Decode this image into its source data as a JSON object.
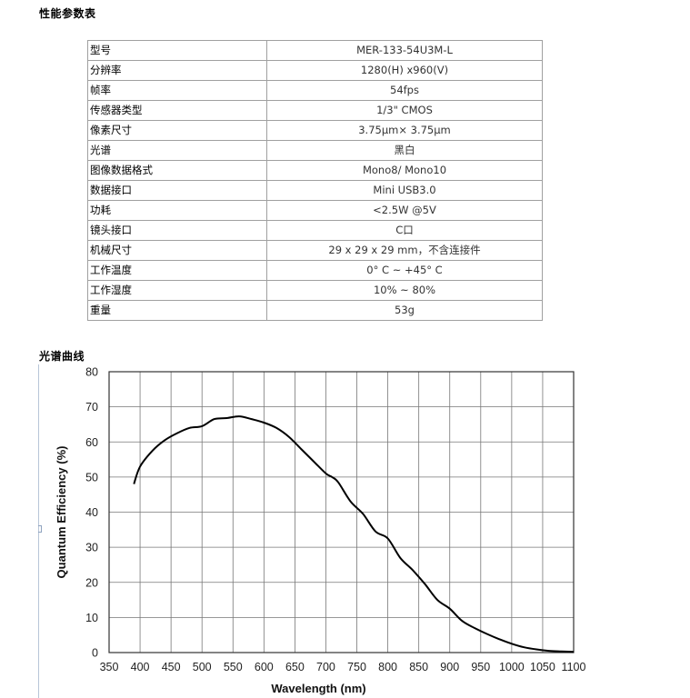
{
  "sections": {
    "specs_title": "性能参数表",
    "curve_title": "光谱曲线"
  },
  "specs": [
    {
      "key": "型号",
      "value": "MER-133-54U3M-L"
    },
    {
      "key": "分辨率",
      "value": "1280(H) x960(V)"
    },
    {
      "key": "帧率",
      "value": "54fps"
    },
    {
      "key": "传感器类型",
      "value": "1/3\" CMOS"
    },
    {
      "key": "像素尺寸",
      "value": "3.75μm× 3.75μm"
    },
    {
      "key": "光谱",
      "value": "黑白"
    },
    {
      "key": "图像数据格式",
      "value": "Mono8/ Mono10"
    },
    {
      "key": "数据接口",
      "value": "Mini USB3.0"
    },
    {
      "key": "功耗",
      "value": "<2.5W @5V"
    },
    {
      "key": "镜头接口",
      "value": "C口"
    },
    {
      "key": "机械尺寸",
      "value": "29 x 29 x 29 mm，不含连接件"
    },
    {
      "key": "工作温度",
      "value": "0° C ~ +45° C"
    },
    {
      "key": "工作湿度",
      "value": "10% ~ 80%"
    },
    {
      "key": "重量",
      "value": "53g"
    }
  ],
  "chart_data": {
    "type": "line",
    "xlabel": "Wavelength (nm)",
    "ylabel": "Quantum Efficiency (%)",
    "xlim": [
      350,
      1100
    ],
    "ylim": [
      0,
      80
    ],
    "x_ticks": [
      350,
      400,
      450,
      500,
      550,
      600,
      650,
      700,
      750,
      800,
      850,
      900,
      950,
      1000,
      1050,
      1100
    ],
    "y_ticks": [
      0,
      10,
      20,
      30,
      40,
      50,
      60,
      70,
      80
    ],
    "grid": true,
    "line_color": "#000000",
    "series": [
      {
        "x": [
          390,
          400,
          420,
          440,
          460,
          480,
          500,
          520,
          540,
          560,
          580,
          600,
          620,
          640,
          660,
          680,
          700,
          710,
          720,
          740,
          760,
          780,
          800,
          820,
          840,
          860,
          880,
          900,
          920,
          940,
          960,
          980,
          1000,
          1020,
          1040,
          1060,
          1080,
          1100
        ],
        "y": [
          48,
          53,
          57.5,
          60.5,
          62.5,
          64,
          64.5,
          66.5,
          66.8,
          67.3,
          66.5,
          65.5,
          64,
          61.5,
          58,
          54.5,
          51,
          50,
          48.5,
          43,
          39.5,
          34.5,
          32.5,
          27,
          23.5,
          19.5,
          15,
          12.5,
          9,
          7,
          5.3,
          3.8,
          2.5,
          1.5,
          0.9,
          0.5,
          0.3,
          0.2
        ]
      }
    ]
  }
}
